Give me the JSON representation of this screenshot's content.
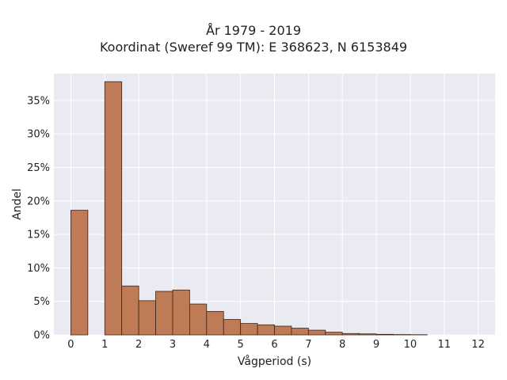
{
  "chart_data": {
    "type": "bar",
    "title": "År 1979 - 2019",
    "subtitle": "Koordinat (Sweref 99 TM): E 368623, N 6153849",
    "xlabel": "Vågperiod (s)",
    "ylabel": "Andel",
    "xlim": [
      -0.5,
      12.5
    ],
    "ylim": [
      0,
      0.39
    ],
    "xticks": [
      0,
      1,
      2,
      3,
      4,
      5,
      6,
      7,
      8,
      9,
      10,
      11,
      12
    ],
    "yticks": [
      {
        "value": 0,
        "label": "0%"
      },
      {
        "value": 0.05,
        "label": "5%"
      },
      {
        "value": 0.1,
        "label": "10%"
      },
      {
        "value": 0.15,
        "label": "15%"
      },
      {
        "value": 0.2,
        "label": "20%"
      },
      {
        "value": 0.25,
        "label": "25%"
      },
      {
        "value": 0.3,
        "label": "30%"
      },
      {
        "value": 0.35,
        "label": "35%"
      }
    ],
    "bins": [
      {
        "start": 0.0,
        "end": 0.5,
        "value": 0.186
      },
      {
        "start": 1.0,
        "end": 1.5,
        "value": 0.378
      },
      {
        "start": 1.5,
        "end": 2.0,
        "value": 0.073
      },
      {
        "start": 2.0,
        "end": 2.5,
        "value": 0.051
      },
      {
        "start": 2.5,
        "end": 3.0,
        "value": 0.065
      },
      {
        "start": 3.0,
        "end": 3.5,
        "value": 0.067
      },
      {
        "start": 3.5,
        "end": 4.0,
        "value": 0.046
      },
      {
        "start": 4.0,
        "end": 4.5,
        "value": 0.035
      },
      {
        "start": 4.5,
        "end": 5.0,
        "value": 0.023
      },
      {
        "start": 5.0,
        "end": 5.5,
        "value": 0.017
      },
      {
        "start": 5.5,
        "end": 6.0,
        "value": 0.015
      },
      {
        "start": 6.0,
        "end": 6.5,
        "value": 0.013
      },
      {
        "start": 6.5,
        "end": 7.0,
        "value": 0.01
      },
      {
        "start": 7.0,
        "end": 7.5,
        "value": 0.007
      },
      {
        "start": 7.5,
        "end": 8.0,
        "value": 0.004
      },
      {
        "start": 8.0,
        "end": 8.5,
        "value": 0.002
      },
      {
        "start": 8.5,
        "end": 9.0,
        "value": 0.0015
      },
      {
        "start": 9.0,
        "end": 9.5,
        "value": 0.0008
      },
      {
        "start": 9.5,
        "end": 10.0,
        "value": 0.0005
      },
      {
        "start": 10.0,
        "end": 10.5,
        "value": 0.0003
      }
    ],
    "grid": true,
    "colors": {
      "bar_fill": "#bf7b56",
      "bar_edge": "#3a2418",
      "plot_background": "#eaeaf2",
      "grid": "#ffffff"
    }
  }
}
